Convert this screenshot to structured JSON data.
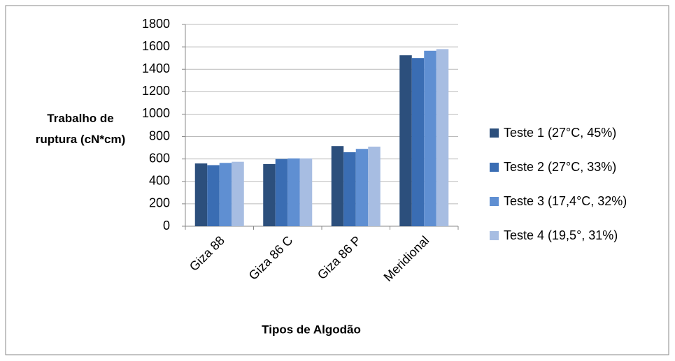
{
  "chart_data": {
    "type": "bar",
    "y_label": "Trabalho de ruptura (cN*cm)",
    "x_label": "Tipos de Algodão",
    "categories": [
      "Giza 88",
      "Giza 86 C",
      "Giza 86 P",
      "Meridional"
    ],
    "series": [
      {
        "name": "Teste 1 (27°C, 45%)",
        "color": "#2c4f7c",
        "values": [
          560,
          555,
          715,
          1525
        ]
      },
      {
        "name": "Teste 2 (27°C, 33%)",
        "color": "#3a6db3",
        "values": [
          545,
          600,
          660,
          1500
        ]
      },
      {
        "name": "Teste 3 (17,4°C, 32%)",
        "color": "#5f8fd2",
        "values": [
          565,
          605,
          690,
          1565
        ]
      },
      {
        "name": "Teste 4 (19,5°, 31%)",
        "color": "#a7bde2",
        "values": [
          575,
          605,
          710,
          1580
        ]
      }
    ],
    "ylim": [
      0,
      1800
    ],
    "yticks": [
      0,
      200,
      400,
      600,
      800,
      1000,
      1200,
      1400,
      1600,
      1800
    ],
    "grid": true,
    "legend": "right"
  }
}
